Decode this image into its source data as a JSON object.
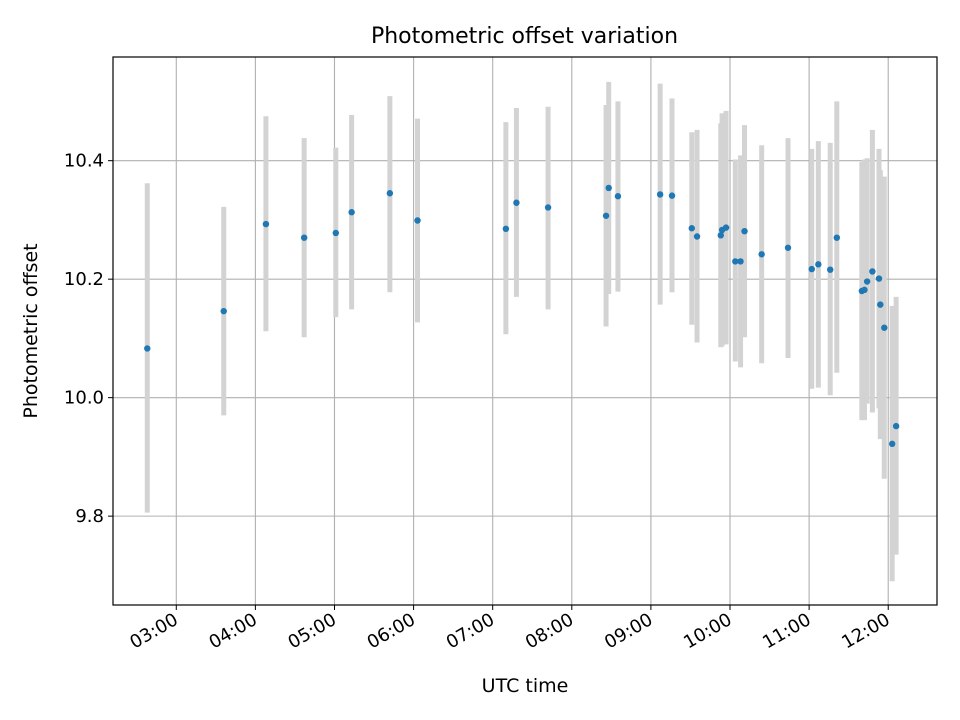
{
  "chart_data": {
    "type": "scatter",
    "title": "Photometric offset variation",
    "xlabel": "UTC time",
    "ylabel": "Photometric offset",
    "xlim": [
      "02:12",
      "12:37"
    ],
    "ylim": [
      9.65,
      10.575
    ],
    "x_ticks": [
      "03:00",
      "04:00",
      "05:00",
      "06:00",
      "07:00",
      "08:00",
      "09:00",
      "10:00",
      "11:00",
      "12:00"
    ],
    "y_ticks": [
      9.8,
      10.0,
      10.2,
      10.4
    ],
    "grid": true,
    "point_color": "#1f77b4",
    "errorbar_color": "#d3d3d3",
    "series": [
      {
        "points": [
          {
            "x": "02:38",
            "y": 10.083,
            "ylow": 9.806,
            "yhigh": 10.362
          },
          {
            "x": "03:36",
            "y": 10.146,
            "ylow": 9.97,
            "yhigh": 10.322
          },
          {
            "x": "04:08",
            "y": 10.293,
            "ylow": 10.112,
            "yhigh": 10.475
          },
          {
            "x": "04:37",
            "y": 10.27,
            "ylow": 10.102,
            "yhigh": 10.438
          },
          {
            "x": "05:01",
            "y": 10.278,
            "ylow": 10.136,
            "yhigh": 10.422
          },
          {
            "x": "05:13",
            "y": 10.313,
            "ylow": 10.149,
            "yhigh": 10.477
          },
          {
            "x": "05:42",
            "y": 10.345,
            "ylow": 10.178,
            "yhigh": 10.509
          },
          {
            "x": "06:03",
            "y": 10.299,
            "ylow": 10.127,
            "yhigh": 10.471
          },
          {
            "x": "07:10",
            "y": 10.285,
            "ylow": 10.107,
            "yhigh": 10.465
          },
          {
            "x": "07:18",
            "y": 10.329,
            "ylow": 10.17,
            "yhigh": 10.489
          },
          {
            "x": "07:42",
            "y": 10.321,
            "ylow": 10.149,
            "yhigh": 10.491
          },
          {
            "x": "08:26",
            "y": 10.307,
            "ylow": 10.12,
            "yhigh": 10.494
          },
          {
            "x": "08:28",
            "y": 10.354,
            "ylow": 10.175,
            "yhigh": 10.533
          },
          {
            "x": "08:35",
            "y": 10.34,
            "ylow": 10.179,
            "yhigh": 10.5
          },
          {
            "x": "09:07",
            "y": 10.343,
            "ylow": 10.157,
            "yhigh": 10.53
          },
          {
            "x": "09:16",
            "y": 10.341,
            "ylow": 10.178,
            "yhigh": 10.505
          },
          {
            "x": "09:31",
            "y": 10.286,
            "ylow": 10.123,
            "yhigh": 10.448
          },
          {
            "x": "09:35",
            "y": 10.272,
            "ylow": 10.093,
            "yhigh": 10.452
          },
          {
            "x": "09:53",
            "y": 10.274,
            "ylow": 10.085,
            "yhigh": 10.463
          },
          {
            "x": "09:54",
            "y": 10.283,
            "ylow": 10.087,
            "yhigh": 10.48
          },
          {
            "x": "09:57",
            "y": 10.287,
            "ylow": 10.09,
            "yhigh": 10.484
          },
          {
            "x": "10:04",
            "y": 10.23,
            "ylow": 10.061,
            "yhigh": 10.402
          },
          {
            "x": "10:08",
            "y": 10.23,
            "ylow": 10.051,
            "yhigh": 10.409
          },
          {
            "x": "10:11",
            "y": 10.281,
            "ylow": 10.102,
            "yhigh": 10.46
          },
          {
            "x": "10:24",
            "y": 10.242,
            "ylow": 10.058,
            "yhigh": 10.426
          },
          {
            "x": "10:44",
            "y": 10.253,
            "ylow": 10.067,
            "yhigh": 10.438
          },
          {
            "x": "11:02",
            "y": 10.217,
            "ylow": 10.015,
            "yhigh": 10.42
          },
          {
            "x": "11:07",
            "y": 10.225,
            "ylow": 10.017,
            "yhigh": 10.433
          },
          {
            "x": "11:16",
            "y": 10.216,
            "ylow": 10.004,
            "yhigh": 10.43
          },
          {
            "x": "11:21",
            "y": 10.27,
            "ylow": 10.042,
            "yhigh": 10.5
          },
          {
            "x": "11:40",
            "y": 10.18,
            "ylow": 9.962,
            "yhigh": 10.398
          },
          {
            "x": "11:42",
            "y": 10.182,
            "ylow": 9.962,
            "yhigh": 10.402
          },
          {
            "x": "11:44",
            "y": 10.196,
            "ylow": 9.99,
            "yhigh": 10.404
          },
          {
            "x": "11:48",
            "y": 10.213,
            "ylow": 9.975,
            "yhigh": 10.452
          },
          {
            "x": "11:53",
            "y": 10.201,
            "ylow": 9.982,
            "yhigh": 10.42
          },
          {
            "x": "11:54",
            "y": 10.157,
            "ylow": 9.93,
            "yhigh": 10.384
          },
          {
            "x": "11:57",
            "y": 10.118,
            "ylow": 9.863,
            "yhigh": 10.373
          },
          {
            "x": "12:03",
            "y": 9.922,
            "ylow": 9.69,
            "yhigh": 10.155
          },
          {
            "x": "12:06",
            "y": 9.952,
            "ylow": 9.735,
            "yhigh": 10.17
          }
        ]
      }
    ]
  }
}
